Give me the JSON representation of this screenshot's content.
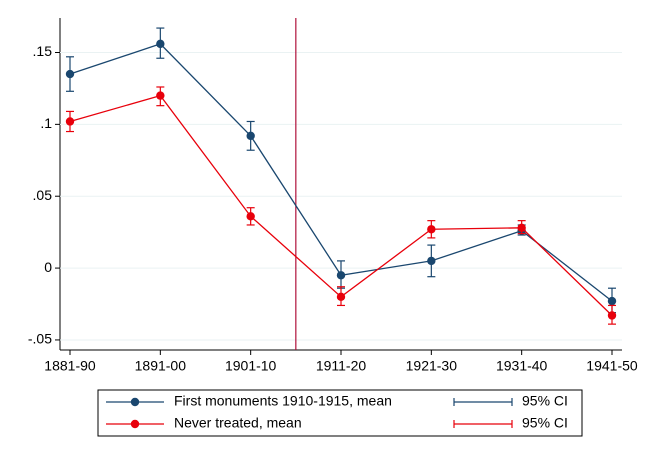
{
  "chart_data": {
    "type": "line",
    "categories": [
      "1881-90",
      "1891-00",
      "1901-10",
      "1911-20",
      "1921-30",
      "1931-40",
      "1941-50"
    ],
    "ylim": [
      -0.057,
      0.174
    ],
    "yticks": [
      {
        "value": -0.05,
        "label": "-.05"
      },
      0,
      {
        "value": 0.05,
        "label": ".05"
      },
      {
        "value": 0.1,
        "label": ".1"
      },
      {
        "value": 0.15,
        "label": ".15"
      }
    ],
    "grid": true,
    "vline": {
      "x": 2.5,
      "color": "#b0103a"
    },
    "series": [
      {
        "name": "First monuments 1910-1915, mean",
        "ci_name": "95% CI",
        "color": "#1a476f",
        "values": [
          0.135,
          0.156,
          0.092,
          -0.005,
          0.005,
          0.026,
          -0.023
        ],
        "ci_low": [
          0.123,
          0.146,
          0.082,
          -0.014,
          -0.006,
          0.023,
          -0.031
        ],
        "ci_high": [
          0.147,
          0.167,
          0.102,
          0.005,
          0.016,
          0.03,
          -0.014
        ]
      },
      {
        "name": "Never treated, mean",
        "ci_name": "95% CI",
        "color": "#e8000b",
        "values": [
          0.102,
          0.12,
          0.036,
          -0.02,
          0.027,
          0.028,
          -0.033
        ],
        "ci_low": [
          0.095,
          0.113,
          0.03,
          -0.026,
          0.021,
          0.024,
          -0.039
        ],
        "ci_high": [
          0.109,
          0.126,
          0.042,
          -0.013,
          0.033,
          0.033,
          -0.026
        ]
      }
    ]
  }
}
